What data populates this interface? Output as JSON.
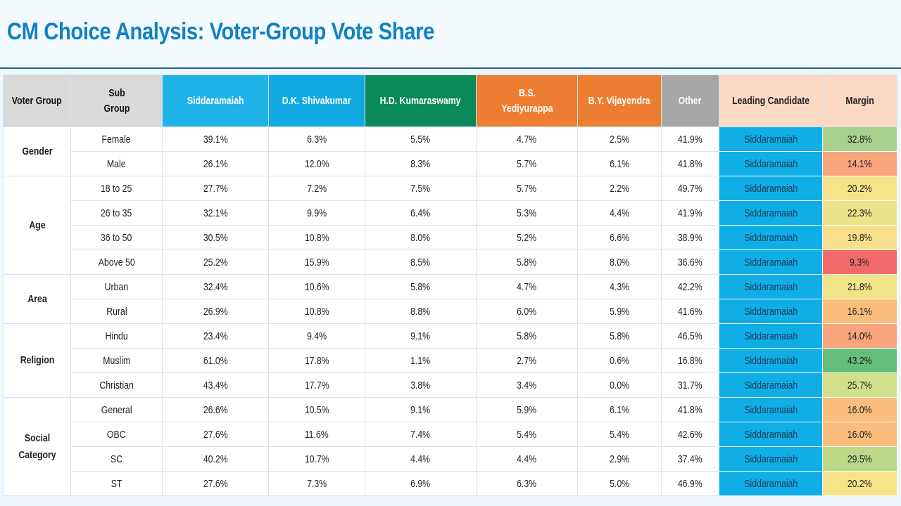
{
  "title": "CM Choice Analysis: Voter-Group Vote Share",
  "headers": {
    "voter_group": "Voter Group",
    "sub_group": "Sub Group",
    "siddaramaiah": "Siddaramaiah",
    "dk": "D.K. Shivakumar",
    "hd": "H.D. Kumaraswamy",
    "bs": "B.S. Yediyurappa",
    "by": "B.Y. Vijayendra",
    "other": "Other",
    "leading": "Leading Candidate",
    "margin": "Margin"
  },
  "colors": {
    "title": "#1280c4",
    "siddaramaiah": "#1fb3ea",
    "dk": "#11a9e4",
    "hd": "#0a8a5a",
    "bs": "#ed7d31",
    "by": "#ed7d31",
    "other": "#a6a6a6",
    "leading_cell": "#10aee6"
  },
  "groups": [
    {
      "name": "Gender",
      "rows": [
        {
          "sub": "Female",
          "s": "39.1%",
          "dk": "6.3%",
          "hd": "5.5%",
          "bs": "4.7%",
          "by": "2.5%",
          "oth": "41.9%",
          "lead": "Siddaramaiah",
          "margin": "32.8%",
          "margin_color": "#a9d18e"
        },
        {
          "sub": "Male",
          "s": "26.1%",
          "dk": "12.0%",
          "hd": "8.3%",
          "bs": "5.7%",
          "by": "6.1%",
          "oth": "41.8%",
          "lead": "Siddaramaiah",
          "margin": "14.1%",
          "margin_color": "#f8a47c"
        }
      ]
    },
    {
      "name": "Age",
      "rows": [
        {
          "sub": "18 to 25",
          "s": "27.7%",
          "dk": "7.2%",
          "hd": "7.5%",
          "bs": "5.7%",
          "by": "2.2%",
          "oth": "49.7%",
          "lead": "Siddaramaiah",
          "margin": "20.2%",
          "margin_color": "#f7e48a"
        },
        {
          "sub": "26 to 35",
          "s": "32.1%",
          "dk": "9.9%",
          "hd": "6.4%",
          "bs": "5.3%",
          "by": "4.4%",
          "oth": "41.9%",
          "lead": "Siddaramaiah",
          "margin": "22.3%",
          "margin_color": "#ece38a"
        },
        {
          "sub": "36 to 50",
          "s": "30.5%",
          "dk": "10.8%",
          "hd": "8.0%",
          "bs": "5.2%",
          "by": "6.6%",
          "oth": "38.9%",
          "lead": "Siddaramaiah",
          "margin": "19.8%",
          "margin_color": "#f9e08a"
        },
        {
          "sub": "Above 50",
          "s": "25.2%",
          "dk": "15.9%",
          "hd": "8.5%",
          "bs": "5.8%",
          "by": "8.0%",
          "oth": "36.6%",
          "lead": "Siddaramaiah",
          "margin": "9.3%",
          "margin_color": "#f26b6b"
        }
      ]
    },
    {
      "name": "Area",
      "rows": [
        {
          "sub": "Urban",
          "s": "32.4%",
          "dk": "10.6%",
          "hd": "5.8%",
          "bs": "4.7%",
          "by": "4.3%",
          "oth": "42.2%",
          "lead": "Siddaramaiah",
          "margin": "21.8%",
          "margin_color": "#f0e388"
        },
        {
          "sub": "Rural",
          "s": "26.9%",
          "dk": "10.8%",
          "hd": "8.8%",
          "bs": "6.0%",
          "by": "5.9%",
          "oth": "41.6%",
          "lead": "Siddaramaiah",
          "margin": "16.1%",
          "margin_color": "#f9bd7c"
        }
      ]
    },
    {
      "name": "Religion",
      "rows": [
        {
          "sub": "Hindu",
          "s": "23.4%",
          "dk": "9.4%",
          "hd": "9.1%",
          "bs": "5.8%",
          "by": "5.8%",
          "oth": "46.5%",
          "lead": "Siddaramaiah",
          "margin": "14.0%",
          "margin_color": "#f8a47c"
        },
        {
          "sub": "Muslim",
          "s": "61.0%",
          "dk": "17.8%",
          "hd": "1.1%",
          "bs": "2.7%",
          "by": "0.6%",
          "oth": "16.8%",
          "lead": "Siddaramaiah",
          "margin": "43.2%",
          "margin_color": "#63be7b"
        },
        {
          "sub": "Christian",
          "s": "43.4%",
          "dk": "17.7%",
          "hd": "3.8%",
          "bs": "3.4%",
          "by": "0.0%",
          "oth": "31.7%",
          "lead": "Siddaramaiah",
          "margin": "25.7%",
          "margin_color": "#d3e08a"
        }
      ]
    },
    {
      "name": "Social Category",
      "rows": [
        {
          "sub": "General",
          "s": "26.6%",
          "dk": "10.5%",
          "hd": "9.1%",
          "bs": "5.9%",
          "by": "6.1%",
          "oth": "41.8%",
          "lead": "Siddaramaiah",
          "margin": "16.0%",
          "margin_color": "#f9bd7c"
        },
        {
          "sub": "OBC",
          "s": "27.6%",
          "dk": "11.6%",
          "hd": "7.4%",
          "bs": "5.4%",
          "by": "5.4%",
          "oth": "42.6%",
          "lead": "Siddaramaiah",
          "margin": "16.0%",
          "margin_color": "#f9bd7c"
        },
        {
          "sub": "SC",
          "s": "40.2%",
          "dk": "10.7%",
          "hd": "4.4%",
          "bs": "4.4%",
          "by": "2.9%",
          "oth": "37.4%",
          "lead": "Siddaramaiah",
          "margin": "29.5%",
          "margin_color": "#bcd98a"
        },
        {
          "sub": "ST",
          "s": "27.6%",
          "dk": "7.3%",
          "hd": "6.9%",
          "bs": "6.3%",
          "by": "5.0%",
          "oth": "46.9%",
          "lead": "Siddaramaiah",
          "margin": "20.2%",
          "margin_color": "#f7e48a"
        }
      ]
    }
  ]
}
